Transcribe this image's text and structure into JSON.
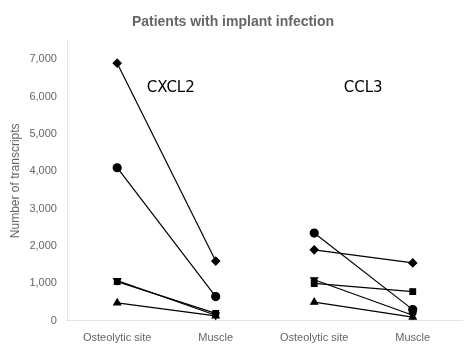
{
  "chart_data": {
    "type": "line",
    "title": "Patients with implant infection",
    "ylabel": "Number of transcripts",
    "categories": [
      "Osteolytic site",
      "Muscle",
      "Osteolytic site",
      "Muscle"
    ],
    "color": "#000000",
    "annotations": [
      "CXCL2",
      "CCL3"
    ],
    "series": [
      {
        "marker": "diamond",
        "values": [
          6900,
          1600,
          null,
          null
        ]
      },
      {
        "marker": "diamond",
        "values": [
          null,
          null,
          1900,
          1550
        ]
      },
      {
        "marker": "circle",
        "values": [
          4100,
          650,
          null,
          null
        ]
      },
      {
        "marker": "circle",
        "values": [
          null,
          null,
          2350,
          300
        ]
      },
      {
        "marker": "square",
        "values": [
          1050,
          200,
          null,
          null
        ]
      },
      {
        "marker": "square",
        "values": [
          null,
          null,
          1000,
          780
        ]
      },
      {
        "marker": "triangle_down",
        "values": [
          1080,
          150,
          null,
          null
        ]
      },
      {
        "marker": "triangle_down",
        "values": [
          null,
          null,
          1100,
          150
        ]
      },
      {
        "marker": "triangle_up",
        "values": [
          480,
          130,
          null,
          null
        ]
      },
      {
        "marker": "triangle_up",
        "values": [
          null,
          null,
          500,
          100
        ]
      }
    ],
    "ylim": [
      0,
      7500
    ],
    "yticks": [
      0,
      1000,
      2000,
      3000,
      4000,
      5000,
      6000,
      7000
    ],
    "grid": false
  }
}
